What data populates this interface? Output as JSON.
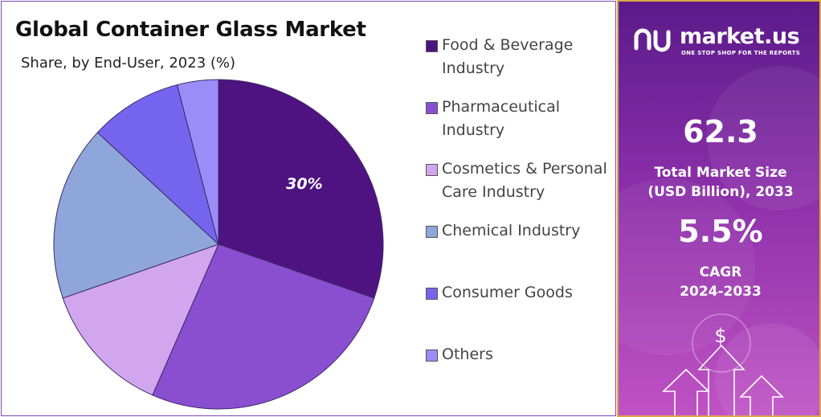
{
  "chart_data": {
    "type": "pie",
    "title": "Global Container Glass Market",
    "subtitle": "Share, by End-User, 2023 (%)",
    "categories": [
      "Food & Beverage Industry",
      "Pharmaceutical Industry",
      "Cosmetics & Personal Care Industry",
      "Chemical Industry",
      "Consumer Goods",
      "Others"
    ],
    "values": [
      30,
      26,
      13,
      17,
      9,
      4
    ],
    "colors": [
      "#4e1380",
      "#8a4fd0",
      "#d2a6ef",
      "#8fa6da",
      "#7565ee",
      "#9b8cf7"
    ],
    "data_labels": [
      {
        "index": 0,
        "text": "30%"
      }
    ],
    "legend_position": "right"
  },
  "legend": {
    "items": [
      {
        "line1": "Food & Beverage",
        "line2": "Industry",
        "color": "#4e1380"
      },
      {
        "line1": "Pharmaceutical",
        "line2": "Industry",
        "color": "#8a4fd0"
      },
      {
        "line1": "Cosmetics & Personal",
        "line2": "Care Industry",
        "color": "#d2a6ef"
      },
      {
        "line1": "Chemical Industry",
        "line2": "",
        "color": "#8fa6da"
      },
      {
        "line1": "Consumer Goods",
        "line2": "",
        "color": "#7565ee"
      },
      {
        "line1": "Others",
        "line2": "",
        "color": "#9b8cf7"
      }
    ]
  },
  "sidebar": {
    "brand": "market.us",
    "tagline": "ONE STOP SHOP FOR THE REPORTS",
    "market_size_value": "62.3",
    "market_size_label_1": "Total Market Size",
    "market_size_label_2": "(USD Billion), 2033",
    "cagr_value": "5.5%",
    "cagr_label_1": "CAGR",
    "cagr_label_2": "2024-2033",
    "currency_symbol": "$"
  }
}
